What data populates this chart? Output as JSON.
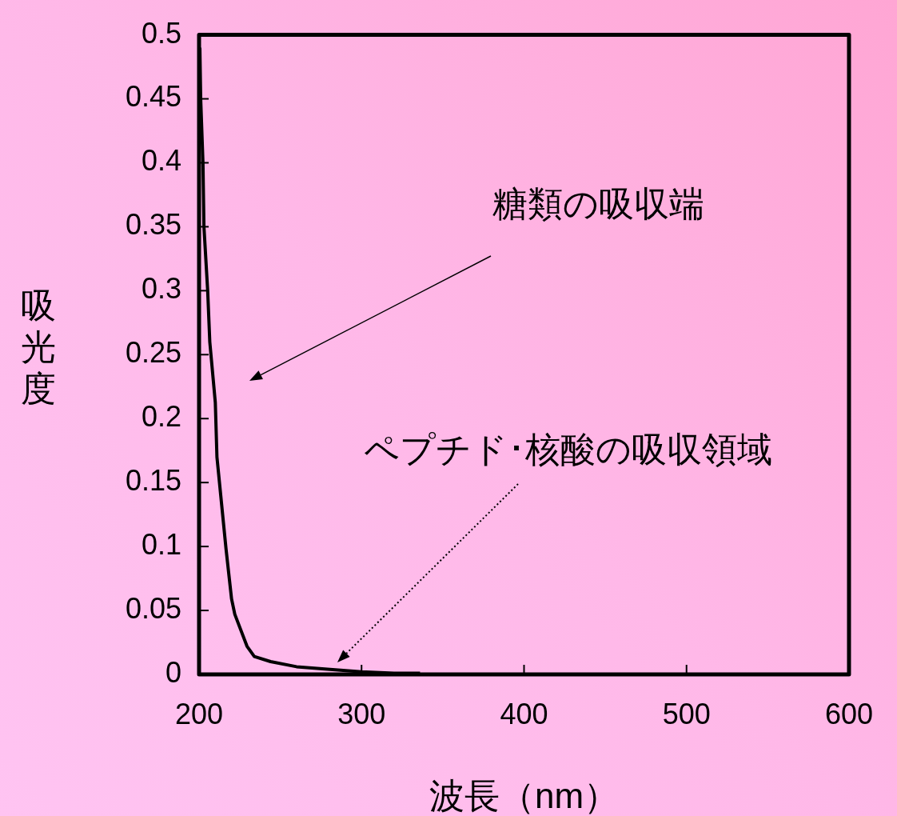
{
  "chart_data": {
    "type": "line",
    "xlabel": "波長（nm）",
    "ylabel": "吸光度",
    "x": [
      200.5,
      201,
      202.4,
      203,
      205.3,
      206.6,
      210,
      211,
      216.6,
      220,
      222,
      229.5,
      234,
      244,
      260,
      279,
      300,
      320,
      336
    ],
    "series": [
      {
        "color": "#000000",
        "values": [
          0.49,
          0.45,
          0.4,
          0.35,
          0.3,
          0.26,
          0.2125,
          0.17,
          0.098,
          0.059,
          0.047,
          0.022,
          0.014,
          0.01,
          0.006,
          0.004,
          0.002,
          0.001,
          0.001
        ]
      }
    ],
    "xlim": [
      200,
      600
    ],
    "xticks": [
      200,
      300,
      400,
      500,
      600
    ],
    "ylim": [
      0,
      0.5
    ],
    "yticks": [
      0,
      0.05,
      0.1,
      0.15,
      0.2,
      0.25,
      0.3,
      0.35,
      0.4,
      0.45,
      0.5
    ],
    "grid": false,
    "legend": false,
    "marker": "none",
    "line_style": "solid",
    "annotations": [
      "糖類の吸収端",
      "ペプチド･核酸の吸収領域"
    ]
  }
}
